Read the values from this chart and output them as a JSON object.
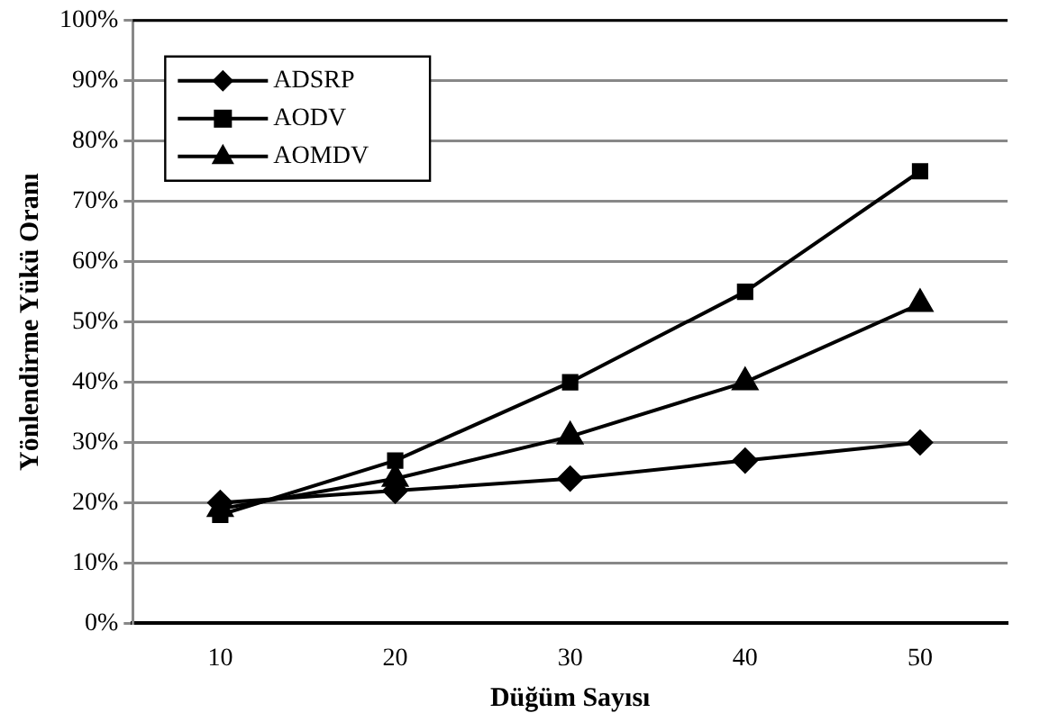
{
  "chart_data": {
    "type": "line",
    "xlabel": "Düğüm Sayısı",
    "ylabel": "Yönlendirme Yükü Oranı",
    "categories": [
      "10",
      "20",
      "30",
      "40",
      "50"
    ],
    "series": [
      {
        "name": "ADSRP",
        "color": "#000000",
        "marker": "diamond",
        "values": [
          20,
          22,
          24,
          27,
          30
        ]
      },
      {
        "name": "AODV",
        "color": "#000000",
        "marker": "square",
        "values": [
          18,
          27,
          40,
          55,
          75
        ]
      },
      {
        "name": "AOMDV",
        "color": "#000000",
        "marker": "triangle",
        "values": [
          19,
          24,
          31,
          40,
          53
        ]
      }
    ],
    "ylim": [
      0,
      100
    ],
    "yticks": [
      {
        "value": 0,
        "label": "0%"
      },
      {
        "value": 10,
        "label": "10%"
      },
      {
        "value": 20,
        "label": "20%"
      },
      {
        "value": 30,
        "label": "30%"
      },
      {
        "value": 40,
        "label": "40%"
      },
      {
        "value": 50,
        "label": "50%"
      },
      {
        "value": 60,
        "label": "60%"
      },
      {
        "value": 70,
        "label": "70%"
      },
      {
        "value": 80,
        "label": "80%"
      },
      {
        "value": 90,
        "label": "90%"
      },
      {
        "value": 100,
        "label": "100%"
      }
    ],
    "grid": "y",
    "legend": "top left",
    "line_style": "solid"
  }
}
